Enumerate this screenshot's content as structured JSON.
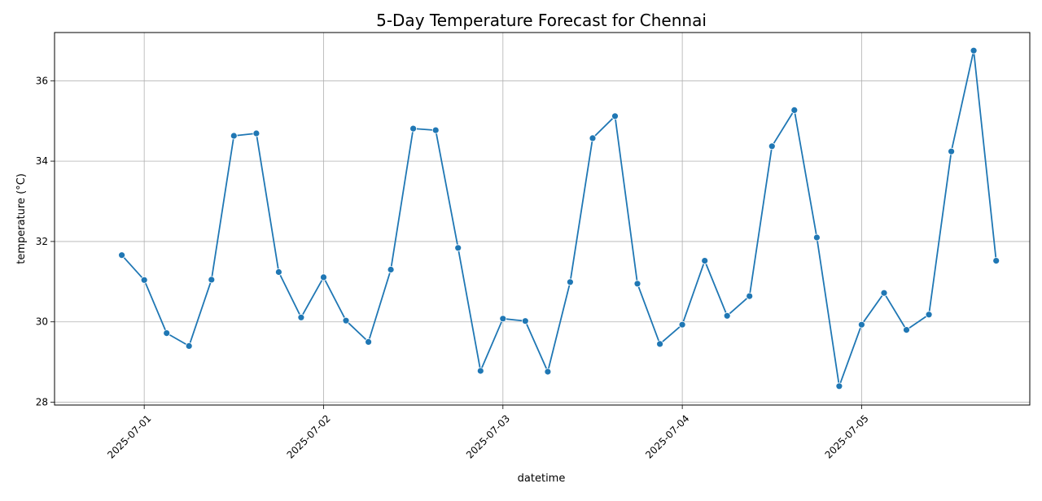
{
  "chart_data": {
    "type": "line",
    "title": "5-Day Temperature Forecast for Chennai",
    "xlabel": "datetime",
    "ylabel": "temperature (°C)",
    "x_ticks": [
      "2025-07-01",
      "2025-07-02",
      "2025-07-03",
      "2025-07-04",
      "2025-07-05"
    ],
    "y_ticks": [
      28,
      30,
      32,
      34,
      36
    ],
    "xlim": [
      "2025-06-30 12:00",
      "2025-07-05 22:30"
    ],
    "ylim": [
      27.93,
      37.2
    ],
    "grid": true,
    "line_color": "#1f77b4",
    "marker": "circle",
    "series": [
      {
        "x": [
          "2025-06-30 21:00",
          "2025-07-01 00:00",
          "2025-07-01 03:00",
          "2025-07-01 06:00",
          "2025-07-01 09:00",
          "2025-07-01 12:00",
          "2025-07-01 15:00",
          "2025-07-01 18:00",
          "2025-07-01 21:00",
          "2025-07-02 00:00",
          "2025-07-02 03:00",
          "2025-07-02 06:00",
          "2025-07-02 09:00",
          "2025-07-02 12:00",
          "2025-07-02 15:00",
          "2025-07-02 18:00",
          "2025-07-02 21:00",
          "2025-07-03 00:00",
          "2025-07-03 03:00",
          "2025-07-03 06:00",
          "2025-07-03 09:00",
          "2025-07-03 12:00",
          "2025-07-03 15:00",
          "2025-07-03 18:00",
          "2025-07-03 21:00",
          "2025-07-04 00:00",
          "2025-07-04 03:00",
          "2025-07-04 06:00",
          "2025-07-04 09:00",
          "2025-07-04 12:00",
          "2025-07-04 15:00",
          "2025-07-04 18:00",
          "2025-07-04 21:00",
          "2025-07-05 00:00",
          "2025-07-05 03:00",
          "2025-07-05 06:00",
          "2025-07-05 09:00",
          "2025-07-05 12:00",
          "2025-07-05 15:00",
          "2025-07-05 18:00"
        ],
        "y": [
          31.66,
          31.04,
          29.72,
          29.4,
          31.05,
          34.63,
          34.69,
          31.24,
          30.11,
          31.11,
          30.03,
          29.5,
          31.3,
          34.81,
          34.77,
          31.84,
          28.78,
          30.08,
          30.02,
          28.76,
          30.99,
          34.57,
          35.12,
          30.95,
          29.45,
          29.93,
          31.52,
          30.15,
          30.64,
          34.37,
          35.27,
          32.1,
          28.4,
          29.93,
          30.72,
          29.8,
          30.18,
          34.24,
          36.75,
          31.52
        ]
      }
    ]
  }
}
